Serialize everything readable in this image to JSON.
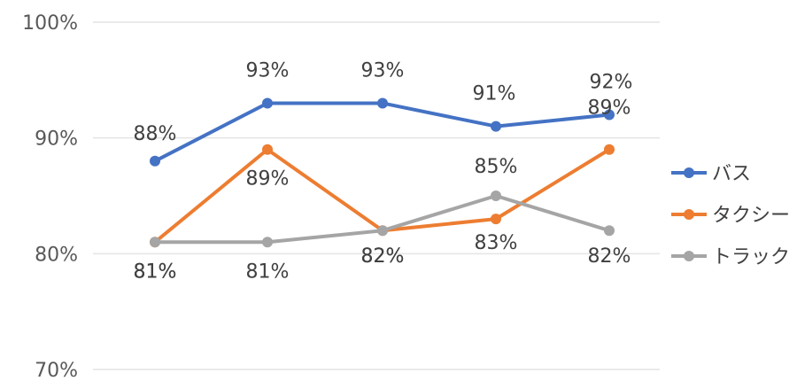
{
  "chart_data": {
    "type": "line",
    "categories": [
      "",
      "",
      "",
      "",
      ""
    ],
    "y_ticks": [
      "70%",
      "80%",
      "90%",
      "100%"
    ],
    "ylim": [
      70,
      100
    ],
    "grid": true,
    "legend_position": "right",
    "series": [
      {
        "name": "バス",
        "color": "#4472C4",
        "values": [
          88,
          93,
          93,
          91,
          92
        ],
        "labels": [
          "88%",
          "93%",
          "93%",
          "91%",
          "92%"
        ]
      },
      {
        "name": "タクシー",
        "color": "#ED7D31",
        "values": [
          81,
          89,
          82,
          83,
          89
        ],
        "labels": [
          "81%",
          "89%",
          "82%",
          "83%",
          "89%"
        ]
      },
      {
        "name": "トラック",
        "color": "#A5A5A5",
        "values": [
          81,
          81,
          82,
          85,
          82
        ],
        "labels": [
          "81%",
          "81%",
          "82%",
          "85%",
          "82%"
        ]
      }
    ]
  }
}
